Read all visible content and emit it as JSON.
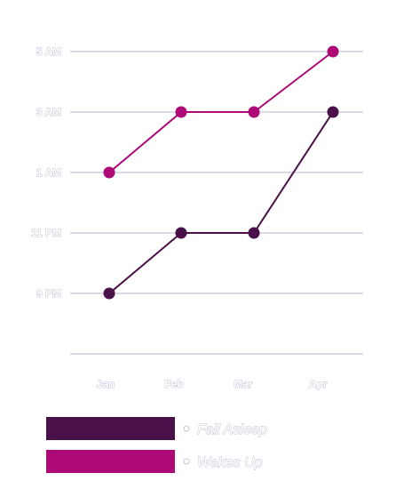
{
  "chart_data": {
    "type": "line",
    "categories": [
      "Jan",
      "Feb",
      "Mar",
      "Apr"
    ],
    "y_ticks": [
      "9 PM",
      "11 PM",
      "1 AM",
      "3 AM",
      "5 AM"
    ],
    "y_tick_values": [
      21,
      23,
      25,
      27,
      29
    ],
    "ylim": [
      19,
      29
    ],
    "series": [
      {
        "name": "Fall Asleep",
        "values": [
          21,
          23,
          23,
          27
        ],
        "color": "#4a1049"
      },
      {
        "name": "Wakes Up",
        "values": [
          25,
          27,
          27,
          29
        ],
        "color": "#ad0a78"
      }
    ],
    "grid": true,
    "legend_position": "bottom-left"
  }
}
